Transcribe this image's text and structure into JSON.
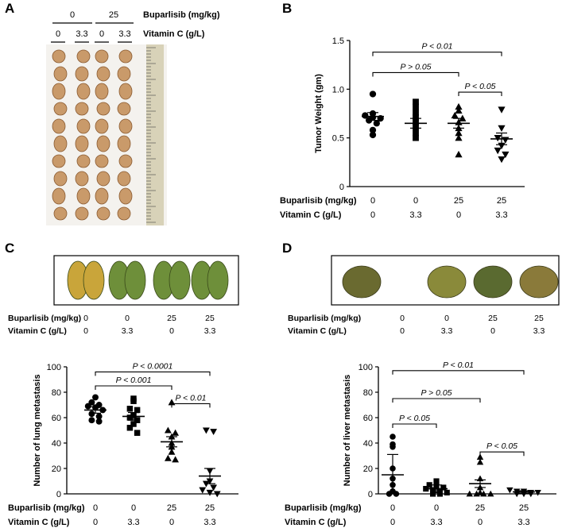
{
  "panels": {
    "a": {
      "letter": "A",
      "header_buparlisib": [
        "0",
        "25"
      ],
      "header_vitc": [
        "0",
        "3.3",
        "0",
        "3.3"
      ],
      "buparlisib_label": "Buparlisib (mg/kg)",
      "vitc_label": "Vitamin C (g/L)"
    },
    "b": {
      "letter": "B"
    },
    "c": {
      "letter": "C",
      "photo_buparlisib": [
        "0",
        "0",
        "25",
        "25"
      ],
      "photo_vitc": [
        "0",
        "3.3",
        "0",
        "3.3"
      ],
      "buparlisib_label": "Buparlisib (mg/kg)",
      "vitc_label": "Vitamin C (g/L)"
    },
    "d": {
      "letter": "D",
      "photo_buparlisib": [
        "0",
        "0",
        "25",
        "25"
      ],
      "photo_vitc": [
        "0",
        "3.3",
        "0",
        "3.3"
      ],
      "buparlisib_label": "Buparlisib (mg/kg)",
      "vitc_label": "Vitamin C (g/L)"
    }
  },
  "colors": {
    "tumor": "#c99a6a",
    "lung_yellow": "#c9a53a",
    "lung_green": "#6e8f3a",
    "liver": "#7a6a30",
    "ruler": "#d8d2b8"
  },
  "chart_data": [
    {
      "id": "B",
      "type": "scatter",
      "ylabel": "Tumor Weight (gm)",
      "ylim": [
        0,
        1.5
      ],
      "yticks": [
        "0",
        "0.5",
        "1.0",
        "1.5"
      ],
      "row_labels": [
        "Buparlisib (mg/kg)",
        "Vitamin C (g/L)"
      ],
      "categories": [
        {
          "buparlisib": "0",
          "vitc": "0",
          "marker": "circle",
          "mean": 0.72,
          "sem": 0.04,
          "values": [
            0.95,
            0.75,
            0.73,
            0.71,
            0.7,
            0.68,
            0.65,
            0.58,
            0.53
          ]
        },
        {
          "buparlisib": "0",
          "vitc": "3.3",
          "marker": "square",
          "mean": 0.65,
          "sem": 0.05,
          "values": [
            0.87,
            0.82,
            0.76,
            0.71,
            0.66,
            0.61,
            0.55,
            0.5
          ]
        },
        {
          "buparlisib": "25",
          "vitc": "0",
          "marker": "triangle-up",
          "mean": 0.65,
          "sem": 0.05,
          "values": [
            0.82,
            0.78,
            0.73,
            0.7,
            0.66,
            0.6,
            0.55,
            0.5,
            0.33
          ]
        },
        {
          "buparlisib": "25",
          "vitc": "3.3",
          "marker": "triangle-down",
          "mean": 0.49,
          "sem": 0.06,
          "values": [
            0.79,
            0.6,
            0.5,
            0.48,
            0.42,
            0.37,
            0.33,
            0.28
          ]
        }
      ],
      "comparisons": [
        {
          "from": 0,
          "to": 3,
          "y": 1.38,
          "label": "P < 0.01"
        },
        {
          "from": 0,
          "to": 2,
          "y": 1.17,
          "label": "P > 0.05"
        },
        {
          "from": 2,
          "to": 3,
          "y": 0.97,
          "label": "P < 0.05"
        }
      ]
    },
    {
      "id": "C",
      "type": "scatter",
      "ylabel": "Number of lung metastasis",
      "ylim": [
        0,
        100
      ],
      "yticks": [
        "0",
        "20",
        "40",
        "60",
        "80",
        "100"
      ],
      "row_labels": [
        "Buparlisib (mg/kg)",
        "Vitamin C (g/L)"
      ],
      "categories": [
        {
          "buparlisib": "0",
          "vitc": "0",
          "marker": "circle",
          "mean": 66,
          "sem": 2.5,
          "values": [
            76,
            72,
            70,
            69,
            68,
            66,
            63,
            61,
            58,
            57
          ]
        },
        {
          "buparlisib": "0",
          "vitc": "3.3",
          "marker": "square",
          "mean": 61,
          "sem": 3,
          "values": [
            75,
            73,
            67,
            66,
            62,
            60,
            58,
            55,
            52,
            48
          ]
        },
        {
          "buparlisib": "25",
          "vitc": "0",
          "marker": "triangle-up",
          "mean": 41,
          "sem": 4,
          "values": [
            72,
            50,
            48,
            45,
            40,
            37,
            33,
            28,
            27
          ]
        },
        {
          "buparlisib": "25",
          "vitc": "3.3",
          "marker": "triangle-down",
          "mean": 14,
          "sem": 6,
          "values": [
            50,
            49,
            18,
            10,
            8,
            5,
            3,
            1,
            0
          ]
        }
      ],
      "comparisons": [
        {
          "from": 0,
          "to": 3,
          "y": 96,
          "label": "P < 0.0001"
        },
        {
          "from": 0,
          "to": 2,
          "y": 85,
          "label": "P < 0.001"
        },
        {
          "from": 2,
          "to": 3,
          "y": 71,
          "label": "P < 0.01"
        }
      ]
    },
    {
      "id": "D",
      "type": "scatter",
      "ylabel": "Number of liver metastasis",
      "ylim": [
        0,
        100
      ],
      "yticks": [
        "0",
        "20",
        "40",
        "60",
        "80",
        "100"
      ],
      "row_labels": [
        "Buparlisib (mg/kg)",
        "Vitamin C (g/L)"
      ],
      "categories": [
        {
          "buparlisib": "0",
          "vitc": "0",
          "marker": "circle",
          "mean": 15,
          "sem": 16,
          "values": [
            45,
            39,
            37,
            20,
            12,
            7,
            2,
            0,
            0
          ]
        },
        {
          "buparlisib": "0",
          "vitc": "3.3",
          "marker": "square",
          "mean": 4,
          "sem": 3,
          "values": [
            10,
            7,
            6,
            5,
            4,
            3,
            2,
            1,
            0,
            0
          ]
        },
        {
          "buparlisib": "25",
          "vitc": "0",
          "marker": "triangle-up",
          "mean": 8,
          "sem": 3,
          "values": [
            29,
            25,
            12,
            5,
            1,
            0,
            0,
            0,
            0
          ]
        },
        {
          "buparlisib": "25",
          "vitc": "3.3",
          "marker": "triangle-down",
          "mean": 1.5,
          "sem": 1,
          "values": [
            3,
            2,
            2,
            1,
            1,
            0,
            0,
            0
          ]
        }
      ],
      "comparisons": [
        {
          "from": 0,
          "to": 3,
          "y": 97,
          "label": "P < 0.01"
        },
        {
          "from": 0,
          "to": 2,
          "y": 75,
          "label": "P > 0.05"
        },
        {
          "from": 0,
          "to": 1,
          "y": 55,
          "label": "P < 0.05"
        },
        {
          "from": 2,
          "to": 3,
          "y": 33,
          "label": "P < 0.05"
        }
      ]
    }
  ]
}
